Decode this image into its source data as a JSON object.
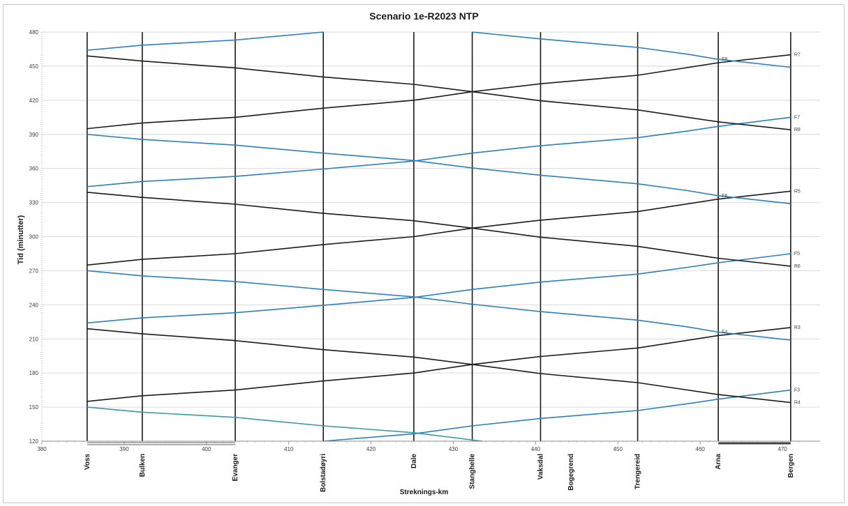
{
  "chart_data": {
    "type": "line",
    "title": "Scenario 1e-R2023 NTP",
    "xlabel": "Streknings-km",
    "ylabel": "Tid (minutter)",
    "xlim": [
      380,
      472
    ],
    "ylim": [
      120,
      480
    ],
    "x_ticks": [
      380,
      390,
      400,
      410,
      420,
      430,
      440,
      450,
      460,
      470
    ],
    "y_ticks": [
      120,
      150,
      180,
      210,
      240,
      270,
      300,
      330,
      360,
      390,
      420,
      450,
      480
    ],
    "grid": "horizontal",
    "stations": [
      {
        "name": "Voss",
        "km": 385.5
      },
      {
        "name": "Bulken",
        "km": 392.2
      },
      {
        "name": "Evanger",
        "km": 403.5
      },
      {
        "name": "Bolstadøyri",
        "km": 414.2
      },
      {
        "name": "Dale",
        "km": 425.2
      },
      {
        "name": "Stanghelle",
        "km": 432.3
      },
      {
        "name": "Vaksdal",
        "km": 440.6
      },
      {
        "name": "Bogegrend",
        "km": 444.3
      },
      {
        "name": "Trengereid",
        "km": 452.4
      },
      {
        "name": "Arna",
        "km": 462.2
      },
      {
        "name": "Bergen",
        "km": 471.0
      }
    ],
    "station_lines_km": [
      385.5,
      392.2,
      403.5,
      414.2,
      425.2,
      432.3,
      440.6,
      452.4,
      462.2,
      471.0
    ],
    "line_colors": {
      "black": "#1a1a1a",
      "blue": "#2a7fc1",
      "teal": "#3a9aa0"
    },
    "series": [
      {
        "name": "",
        "color": "teal",
        "x": [
          385.5,
          392.2,
          403.5,
          414.2,
          425.2,
          433.5
        ],
        "y": [
          150,
          145.5,
          141,
          133.5,
          127.5,
          120
        ]
      },
      {
        "name": "F3",
        "color": "blue",
        "x": [
          414.2,
          425.2,
          432.3,
          440.6,
          452.4,
          458.5,
          462.2,
          471.0
        ],
        "y": [
          120,
          126.5,
          133.5,
          140,
          147,
          153,
          157,
          165
        ]
      },
      {
        "name": "R4",
        "color": "black",
        "x": [
          385.5,
          392.2,
          403.5,
          414.2,
          425.2,
          432.3,
          440.6,
          452.4,
          462.2,
          471.0
        ],
        "y": [
          219,
          214.5,
          208.5,
          200.5,
          194,
          187.5,
          179.5,
          171.5,
          161,
          154
        ]
      },
      {
        "name": "",
        "color": "black",
        "x": [
          385.5,
          392.2,
          403.5,
          414.2,
          425.2,
          432.3,
          440.6,
          452.4,
          462.2,
          471.0
        ],
        "y": [
          155,
          160,
          165,
          173,
          180,
          187.5,
          194.5,
          202,
          213,
          220
        ]
      },
      {
        "name": "R3",
        "color": "black",
        "x": [
          471.0
        ],
        "y": [
          220
        ]
      },
      {
        "name": "F4",
        "color": "blue",
        "x": [
          385.5,
          392.2,
          403.5,
          414.2,
          425.2,
          432.3,
          440.6,
          452.4,
          458.5,
          462.2,
          471.0
        ],
        "y": [
          270,
          265.5,
          260.5,
          253.5,
          247,
          240.5,
          234,
          226.5,
          220.5,
          216,
          209
        ]
      },
      {
        "name": "F5",
        "color": "blue",
        "x": [
          385.5,
          392.2,
          403.5,
          414.2,
          425.2,
          432.3,
          440.6,
          452.4,
          458.5,
          462.2,
          471.0
        ],
        "y": [
          224,
          228.5,
          233,
          239.5,
          246.5,
          253.5,
          260,
          267,
          273,
          277,
          285
        ]
      },
      {
        "name": "R6",
        "color": "black",
        "x": [
          385.5,
          392.2,
          403.5,
          414.2,
          425.2,
          432.3,
          440.6,
          452.4,
          462.2,
          471.0
        ],
        "y": [
          339,
          334.5,
          328.5,
          320.5,
          314,
          307.5,
          299.5,
          291.5,
          281,
          274
        ]
      },
      {
        "name": "R5",
        "color": "black",
        "x": [
          385.5,
          392.2,
          403.5,
          414.2,
          425.2,
          432.3,
          440.6,
          452.4,
          462.2,
          471.0
        ],
        "y": [
          275,
          280,
          285,
          293,
          300,
          307.5,
          314.5,
          322,
          333,
          340
        ]
      },
      {
        "name": "F6",
        "color": "blue",
        "x": [
          385.5,
          392.2,
          403.5,
          414.2,
          425.2,
          432.3,
          440.6,
          452.4,
          458.5,
          462.2,
          471.0
        ],
        "y": [
          390,
          385.5,
          380.5,
          373.5,
          367,
          360.5,
          354,
          346.5,
          340.5,
          336,
          329
        ]
      },
      {
        "name": "F7",
        "color": "blue",
        "x": [
          385.5,
          392.2,
          403.5,
          414.2,
          425.2,
          432.3,
          440.6,
          452.4,
          458.5,
          462.2,
          471.0
        ],
        "y": [
          344,
          348.5,
          353,
          359.5,
          366.5,
          373.5,
          380,
          387,
          393,
          397,
          405
        ]
      },
      {
        "name": "R8",
        "color": "black",
        "x": [
          385.5,
          392.2,
          403.5,
          414.2,
          425.2,
          432.3,
          440.6,
          452.4,
          462.2,
          471.0
        ],
        "y": [
          459,
          454.5,
          448.5,
          440.5,
          434,
          427.5,
          419.5,
          411.5,
          401,
          394
        ]
      },
      {
        "name": "R7",
        "color": "black",
        "x": [
          385.5,
          392.2,
          403.5,
          414.2,
          425.2,
          432.3,
          440.6,
          452.4,
          462.2,
          471.0
        ],
        "y": [
          395,
          400,
          405,
          413,
          420,
          427.5,
          434.5,
          442,
          453,
          460
        ]
      },
      {
        "name": "F8",
        "color": "blue",
        "x": [
          432.3,
          440.6,
          452.4,
          458.5,
          462.2,
          471.0
        ],
        "y": [
          480,
          474,
          466.5,
          460.5,
          456,
          449
        ]
      },
      {
        "name": "",
        "color": "blue",
        "x": [
          385.5,
          392.2,
          403.5,
          414.2
        ],
        "y": [
          464,
          468.5,
          473,
          480
        ]
      }
    ],
    "train_labels": [
      {
        "text": "F3",
        "x": 471.0,
        "y": 165,
        "side": "right"
      },
      {
        "text": "R4",
        "x": 471.0,
        "y": 154,
        "side": "right"
      },
      {
        "text": "R3",
        "x": 471.0,
        "y": 220,
        "side": "right"
      },
      {
        "text": "F4",
        "x": 462.2,
        "y": 216,
        "side": "right"
      },
      {
        "text": "F5",
        "x": 471.0,
        "y": 285,
        "side": "right"
      },
      {
        "text": "R6",
        "x": 471.0,
        "y": 274,
        "side": "right"
      },
      {
        "text": "R5",
        "x": 471.0,
        "y": 340,
        "side": "right"
      },
      {
        "text": "F6",
        "x": 462.2,
        "y": 336,
        "side": "right"
      },
      {
        "text": "F7",
        "x": 471.0,
        "y": 405,
        "side": "right"
      },
      {
        "text": "R8",
        "x": 471.0,
        "y": 394,
        "side": "right"
      },
      {
        "text": "R7",
        "x": 471.0,
        "y": 460,
        "side": "right"
      },
      {
        "text": "F8",
        "x": 462.2,
        "y": 456,
        "side": "right"
      }
    ],
    "track_segments": [
      {
        "from_km": 385.5,
        "to_km": 403.5,
        "style": "double"
      },
      {
        "from_km": 462.2,
        "to_km": 471.0,
        "style": "thick"
      }
    ]
  }
}
